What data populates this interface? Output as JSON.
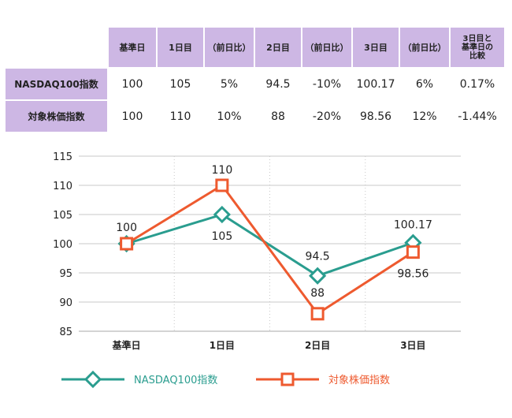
{
  "table": {
    "header": [
      "基準日",
      "1日目",
      "（前日比）",
      "2日目",
      "（前日比）",
      "3日目",
      "（前日比）"
    ],
    "header_last_lines": [
      "3日目と",
      "基準日の",
      "比較"
    ],
    "rows": [
      {
        "label": "NASDAQ100指数",
        "cells": [
          "100",
          "105",
          "5%",
          "94.5",
          "-10%",
          "100.17",
          "6%",
          "0.17%"
        ]
      },
      {
        "label": "対象株価指数",
        "cells": [
          "100",
          "110",
          "10%",
          "88",
          "-20%",
          "98.56",
          "12%",
          "-1.44%"
        ]
      }
    ]
  },
  "chart_data": {
    "type": "line",
    "categories": [
      "基準日",
      "1日目",
      "2日目",
      "3日目"
    ],
    "series": [
      {
        "name": "NASDAQ100指数",
        "values": [
          100,
          105,
          94.5,
          100.17
        ],
        "labels": [
          "",
          "105",
          "94.5",
          "100.17"
        ],
        "color": "#2a9d8f",
        "marker": "diamond"
      },
      {
        "name": "対象株価指数",
        "values": [
          100,
          110,
          88,
          98.56
        ],
        "labels": [
          "100",
          "110",
          "88",
          "98.56"
        ],
        "color": "#ee5a2f",
        "marker": "square"
      }
    ],
    "ylim": [
      85,
      115
    ],
    "yticks": [
      "85",
      "90",
      "95",
      "100",
      "105",
      "110",
      "115"
    ],
    "grid": true,
    "legend": "bottom"
  },
  "colors": {
    "header_bg": "#cdb7e4",
    "grid": "#c8c8c8",
    "axis": "#aaaaaa"
  }
}
